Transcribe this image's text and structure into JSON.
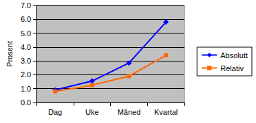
{
  "chart_data": {
    "type": "line",
    "ylabel": "Prosent",
    "categories": [
      "Dag",
      "Uke",
      "Måned",
      "Kvartal"
    ],
    "series": [
      {
        "name": "Absolutt",
        "color": "#0000ff",
        "marker": "diamond",
        "values": [
          0.9,
          1.55,
          2.85,
          5.8
        ]
      },
      {
        "name": "Relativ",
        "color": "#ff6600",
        "marker": "square",
        "values": [
          0.8,
          1.25,
          1.9,
          3.4
        ]
      }
    ],
    "ylim": [
      0,
      7
    ],
    "yticks": [
      {
        "value": 0,
        "label": "0.0"
      },
      {
        "value": 1,
        "label": "1.0"
      },
      {
        "value": 2,
        "label": "2.0"
      },
      {
        "value": 3,
        "label": "3.0"
      },
      {
        "value": 4,
        "label": "4.0"
      },
      {
        "value": 5,
        "label": "5.0"
      },
      {
        "value": 6,
        "label": "6.0"
      },
      {
        "value": 7,
        "label": "7.0"
      }
    ],
    "grid": true,
    "legend": "right"
  }
}
